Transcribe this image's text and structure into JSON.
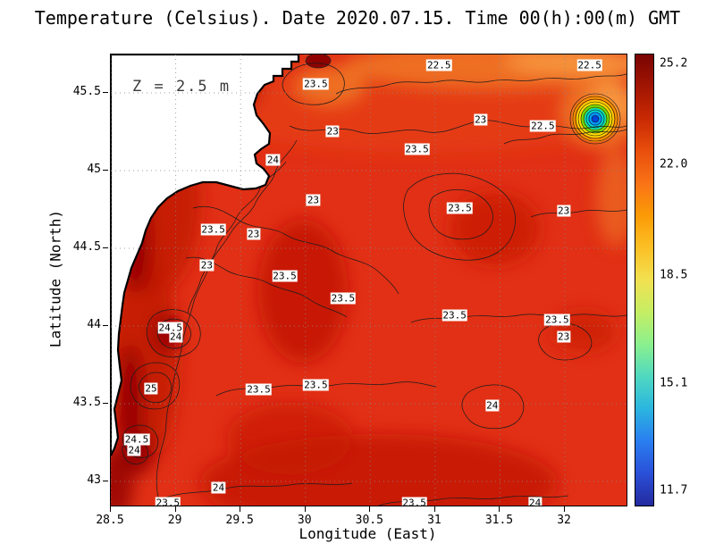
{
  "title": "Temperature (Celsius). Date 2020.07.15. Time 00(h):00(m) GMT",
  "chart_data": {
    "type": "heatmap",
    "variant": "filled-contour-map",
    "title": "Temperature (Celsius). Date 2020.07.15. Time 00(h):00(m) GMT",
    "xlabel": "Longitude (East)",
    "ylabel": "Latitude (North)",
    "depth_annotation": "Z = 2.5 m",
    "xlim": [
      28.5,
      32.475
    ],
    "ylim": [
      42.845,
      45.747
    ],
    "x_tick_values": [
      28.5,
      29,
      29.5,
      30,
      30.5,
      31,
      31.5,
      32
    ],
    "x_tick_labels": [
      "28.5",
      "29",
      "29.5",
      "30",
      "30.5",
      "31",
      "31.5",
      "32"
    ],
    "y_tick_values": [
      43,
      43.5,
      44,
      44.5,
      45,
      45.5
    ],
    "y_tick_labels": [
      "43",
      "43.5",
      "44",
      "44.5",
      "45",
      "45.5"
    ],
    "grid": true,
    "contour_interval": 0.5,
    "contour_labels": [
      {
        "value": "22.5",
        "lon": 31.03,
        "lat": 45.68
      },
      {
        "value": "23.5",
        "lon": 30.08,
        "lat": 45.56
      },
      {
        "value": "22.5",
        "lon": 32.19,
        "lat": 45.68
      },
      {
        "value": "23",
        "lon": 31.35,
        "lat": 45.33
      },
      {
        "value": "22.5",
        "lon": 31.83,
        "lat": 45.29
      },
      {
        "value": "23",
        "lon": 30.21,
        "lat": 45.25
      },
      {
        "value": "23.5",
        "lon": 30.86,
        "lat": 45.14
      },
      {
        "value": "24",
        "lon": 29.75,
        "lat": 45.07
      },
      {
        "value": "23",
        "lon": 30.06,
        "lat": 44.81
      },
      {
        "value": "23.5",
        "lon": 31.19,
        "lat": 44.76
      },
      {
        "value": "23",
        "lon": 31.99,
        "lat": 44.74
      },
      {
        "value": "23.5",
        "lon": 29.29,
        "lat": 44.62
      },
      {
        "value": "23",
        "lon": 29.6,
        "lat": 44.59
      },
      {
        "value": "23",
        "lon": 29.24,
        "lat": 44.39
      },
      {
        "value": "23.5",
        "lon": 29.84,
        "lat": 44.32
      },
      {
        "value": "23.5",
        "lon": 30.29,
        "lat": 44.18
      },
      {
        "value": "23.5",
        "lon": 31.15,
        "lat": 44.07
      },
      {
        "value": "23.5",
        "lon": 31.94,
        "lat": 44.04
      },
      {
        "value": "24.5",
        "lon": 28.96,
        "lat": 43.99
      },
      {
        "value": "24",
        "lon": 29.0,
        "lat": 43.93
      },
      {
        "value": "23",
        "lon": 31.99,
        "lat": 43.93
      },
      {
        "value": "25",
        "lon": 28.81,
        "lat": 43.6
      },
      {
        "value": "23.5",
        "lon": 29.64,
        "lat": 43.59
      },
      {
        "value": "23.5",
        "lon": 30.08,
        "lat": 43.62
      },
      {
        "value": "24",
        "lon": 31.44,
        "lat": 43.49
      },
      {
        "value": "24.5",
        "lon": 28.7,
        "lat": 43.27
      },
      {
        "value": "24",
        "lon": 28.68,
        "lat": 43.2
      },
      {
        "value": "24",
        "lon": 29.33,
        "lat": 42.96
      },
      {
        "value": "23.5",
        "lon": 28.94,
        "lat": 42.86
      },
      {
        "value": "23.5",
        "lon": 30.84,
        "lat": 42.86
      },
      {
        "value": "24",
        "lon": 31.77,
        "lat": 42.86
      }
    ],
    "colorbar": {
      "range": [
        11.25,
        25.5
      ],
      "ticks": [
        {
          "value": 25.2,
          "label": "25.2"
        },
        {
          "value": 22.0,
          "label": "22.0"
        },
        {
          "value": 18.5,
          "label": "18.5"
        },
        {
          "value": 15.1,
          "label": "15.1"
        },
        {
          "value": 11.7,
          "label": "11.7"
        }
      ],
      "colors": [
        "#7a0403",
        "#a11502",
        "#c92903",
        "#e94f0d",
        "#f97316",
        "#fb9b06",
        "#fcc026",
        "#f2e151",
        "#c5ee64",
        "#8af08e",
        "#4fd8c0",
        "#2bb5e0",
        "#2a7ef0",
        "#2a50d8",
        "#232a9e"
      ]
    },
    "palette": {
      "sea_base": "#e13015",
      "warm_dark_red": "#bf1505",
      "warmest_maroon": "#8f0200",
      "warm_orange": "#f07826",
      "light_orange": "#f99d44",
      "land": "#ffffff",
      "coastline": "#000000"
    }
  }
}
